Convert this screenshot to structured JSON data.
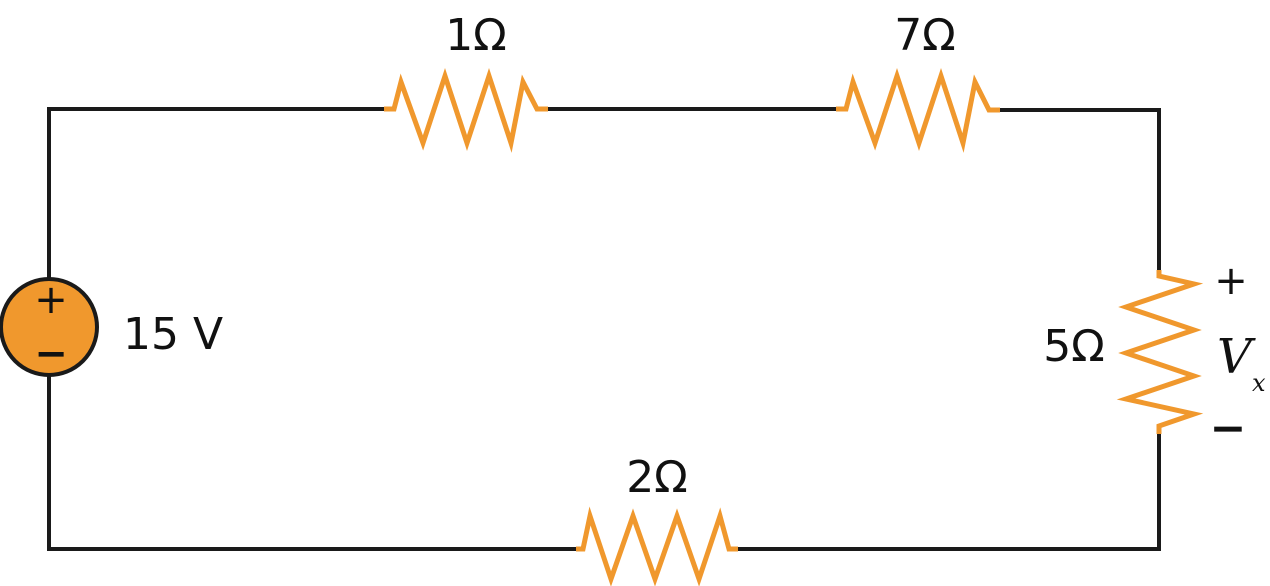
{
  "colors": {
    "resistor": "#f0982d",
    "source_fill": "#f0982d",
    "wire": "#1a1a1a",
    "text": "#111111"
  },
  "source": {
    "value_label": "15 V",
    "plus_sign": "+",
    "minus_sign": "−"
  },
  "resistors": {
    "r1": {
      "label": "1Ω"
    },
    "r2": {
      "label": "7Ω"
    },
    "r3": {
      "label": "5Ω"
    },
    "r4": {
      "label": "2Ω"
    }
  },
  "measurement": {
    "plus_sign": "+",
    "minus_sign": "−",
    "symbol": "V",
    "subscript": "x"
  }
}
